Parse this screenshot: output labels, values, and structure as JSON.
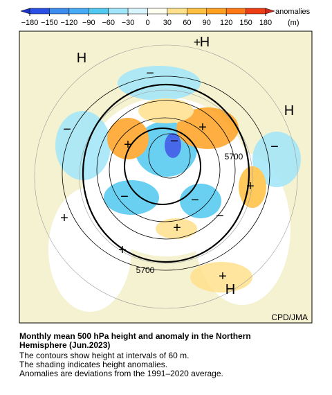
{
  "colorbar": {
    "ticks": [
      {
        "value": -180,
        "label": "−180"
      },
      {
        "value": -150,
        "label": "−150"
      },
      {
        "value": -120,
        "label": "−120"
      },
      {
        "value": -90,
        "label": "−90"
      },
      {
        "value": -60,
        "label": "−60"
      },
      {
        "value": -30,
        "label": "−30"
      },
      0,
      30,
      60,
      90,
      120,
      150,
      180
    ],
    "colors": [
      "#2850e6",
      "#3c8cf0",
      "#46aaf5",
      "#50c8f0",
      "#a0e6fa",
      "#d8f4fc",
      "#fffff0",
      "#ffe08c",
      "#ffc040",
      "#ffa020",
      "#ff7814",
      "#f03c14"
    ],
    "label": [
      "anomalies",
      "(m)"
    ]
  },
  "map": {
    "labels": [
      "H",
      "H",
      "H",
      "H",
      "+",
      "5700",
      "5700",
      "−",
      "−",
      "−",
      "−",
      "−",
      "−",
      "−",
      "+",
      "+",
      "+",
      "+",
      "+",
      "+",
      "+"
    ]
  },
  "credit": "CPD/JMA",
  "caption": {
    "title": [
      "Monthly mean 500 hPa height and anomaly in the Northern",
      "Hemisphere (Jun.2023)"
    ],
    "lines": [
      "The contours show height at intervals of 60 m.",
      "The shading indicates height anomalies.",
      "Anomalies are deviations from the 1991–2020 average."
    ]
  }
}
